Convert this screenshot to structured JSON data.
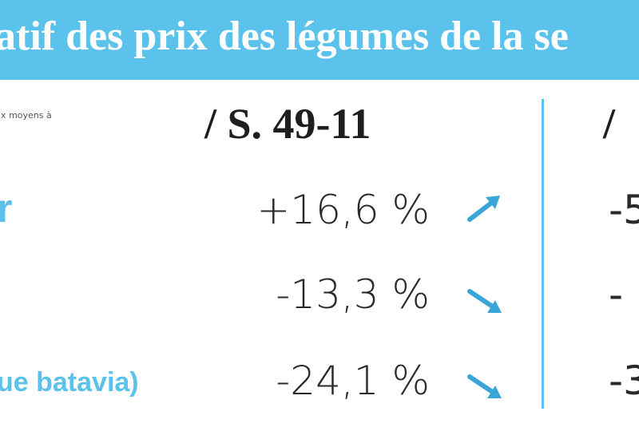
{
  "header": {
    "title": "atif des prix des légumes de la se"
  },
  "table": {
    "note": "ix moyens à",
    "columns": [
      "/ S. 49-11",
      "/"
    ],
    "rows": [
      {
        "label": "r",
        "value": "+16,6 %",
        "next": "-5"
      },
      {
        "value": "-13,3 %",
        "next": "-"
      },
      {
        "label": "ue batavia)",
        "value": "-24,1 %",
        "next": "-3"
      }
    ]
  }
}
